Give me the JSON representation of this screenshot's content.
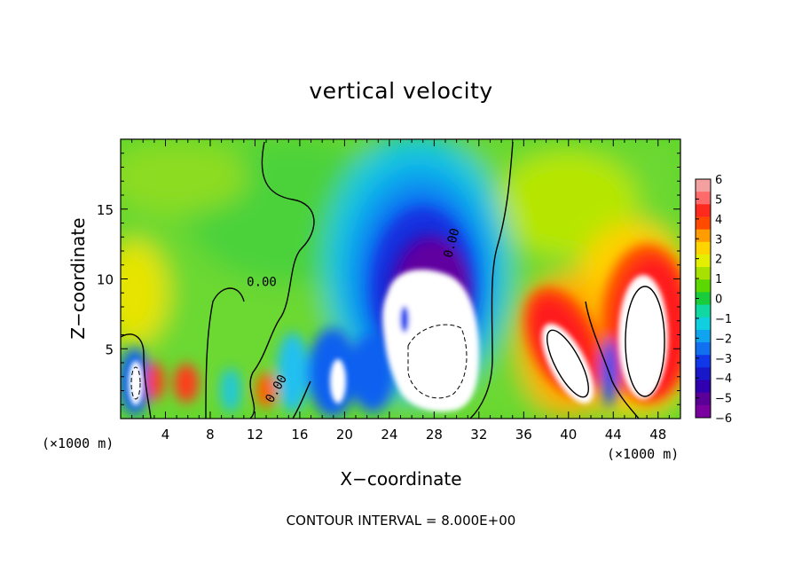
{
  "chart_data": {
    "type": "heatmap",
    "title": "vertical velocity",
    "xlabel": "X−coordinate",
    "ylabel": "Z−coordinate",
    "x_unit": "(×1000 m)",
    "xlim": [
      0,
      50
    ],
    "ylim": [
      0,
      20
    ],
    "x_ticks": [
      4,
      8,
      12,
      16,
      20,
      24,
      28,
      32,
      36,
      40,
      44,
      48
    ],
    "y_ticks": [
      5,
      10,
      15
    ],
    "colorbar": {
      "ticks": [
        6,
        5,
        4,
        3,
        2,
        1,
        0,
        -1,
        -2,
        -3,
        -4,
        -5,
        -6
      ],
      "colors": [
        "#f3a0a0",
        "#ff6a6a",
        "#ff2a1e",
        "#ff4a00",
        "#ff9c00",
        "#ffd400",
        "#e4ee00",
        "#a8e000",
        "#5ad800",
        "#19cc3c",
        "#10d8a0",
        "#10d0e0",
        "#10a4f0",
        "#1070f0",
        "#1038e8",
        "#1818c8",
        "#3000b0",
        "#5a0098",
        "#7a00a0"
      ],
      "range": [
        -6,
        6
      ]
    },
    "contour_label": "0.00",
    "contour_interval_text": "CONTOUR INTERVAL = 8.000E+00",
    "features": [
      {
        "x": 2,
        "z": 2.5,
        "w": -6
      },
      {
        "x": 4,
        "z": 2.5,
        "w": 3
      },
      {
        "x": 6,
        "z": 2.5,
        "w": 4
      },
      {
        "x": 13,
        "z": 2,
        "w": 3
      },
      {
        "x": 18.5,
        "z": 2.5,
        "w": -6
      },
      {
        "x": 22.5,
        "z": 3.5,
        "w": -5
      },
      {
        "x": 25,
        "z": 9,
        "w": -5
      },
      {
        "x": 27,
        "z": 6.5,
        "w": -8
      },
      {
        "x": 39,
        "z": 5.5,
        "w": 8
      },
      {
        "x": 42,
        "z": 5,
        "w": -4
      },
      {
        "x": 46.5,
        "z": 7,
        "w": 8
      }
    ]
  }
}
